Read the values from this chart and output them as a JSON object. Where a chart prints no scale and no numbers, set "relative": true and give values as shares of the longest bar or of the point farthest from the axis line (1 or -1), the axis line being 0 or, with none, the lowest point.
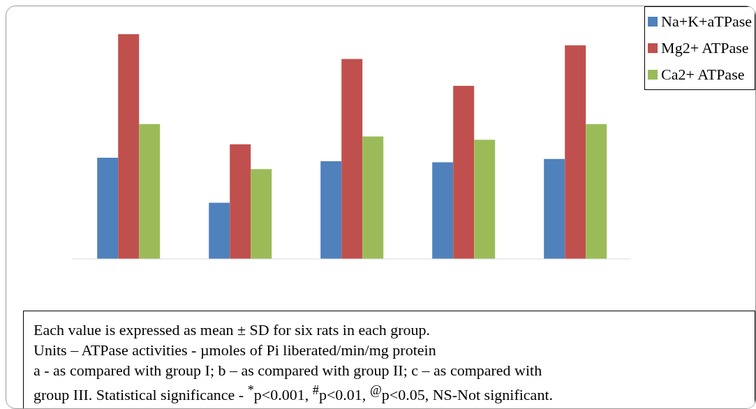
{
  "chart_data": {
    "type": "bar",
    "relative": true,
    "categories": [
      null,
      null,
      null,
      null,
      null
    ],
    "series": [
      {
        "name": "Na+K+aTPase",
        "color": "#4f81bd",
        "values": [
          0.45,
          0.25,
          0.435,
          0.43,
          0.445
        ]
      },
      {
        "name": "Mg2+ ATPase",
        "color": "#c0504d",
        "values": [
          1,
          0.51,
          0.89,
          0.77,
          0.95
        ]
      },
      {
        "name": "Ca2+ ATPase",
        "color": "#9bbb59",
        "values": [
          0.6,
          0.4,
          0.545,
          0.53,
          0.6
        ]
      }
    ],
    "legend": "top right",
    "annotations": [
      "Each value is expressed as mean ± SD for six rats in each group.",
      "Units – ATPase activities - µmoles of Pi liberated/min/mg protein",
      "a - as compared with group I; b – as compared with group II; c – as compared with",
      "group III. Statistical significance - $^{*}$p<0.001, $^{#}$p<0.01, $^{@}$p<0.05, NS-Not significant."
    ]
  }
}
